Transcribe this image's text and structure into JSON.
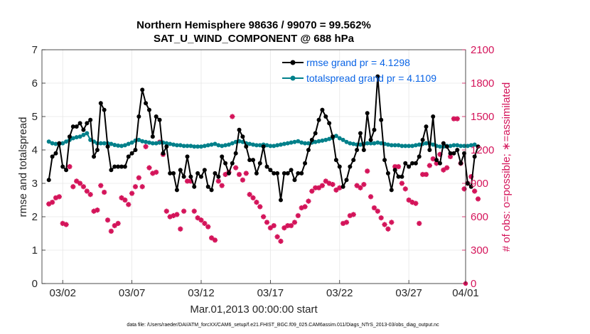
{
  "chart_data": {
    "type": "line",
    "title": "Northern Hemisphere 98636 / 99070 = 99.562%",
    "subtitle": "SAT_U_WIND_COMPONENT @ 688 hPa",
    "xlabel": "Mar.01,2013 00:00:00 start",
    "ylabel": "rmse and totalspread",
    "y2label": "# of obs: o=possible; ∗=assimilated",
    "footnote": "data file: /Users/raeder/DAI/ATM_forcXX/CAM6_setup/f.e21.FHIST_BGC.f09_025.CAM6assim.011/Diags_NTrS_2013-03/obs_diag_output.nc",
    "xlim": [
      0.5,
      31.1
    ],
    "ylim": [
      0,
      7
    ],
    "y2lim": [
      0,
      2100
    ],
    "x_ticks": [
      2,
      7,
      12,
      17,
      22,
      27,
      32
    ],
    "x_tick_labels": [
      "03/02",
      "03/07",
      "03/12",
      "03/17",
      "03/22",
      "03/27",
      "04/01"
    ],
    "y_ticks": [
      "0",
      "1",
      "2",
      "3",
      "4",
      "5",
      "6",
      "7"
    ],
    "y2_ticks": [
      "0",
      "300",
      "600",
      "900",
      "1200",
      "1500",
      "1800",
      "2100"
    ],
    "grid": true,
    "legend_position": "top-right",
    "colors": {
      "rmse": "#000000",
      "spread": "#00808a",
      "obs": "#d4145a",
      "legend_text": "#0a64e6"
    },
    "series": [
      {
        "name": "rmse grand pr = 4.1298",
        "color": "#000000",
        "values": [
          3.1,
          3.8,
          3.9,
          4.2,
          3.5,
          3.4,
          4.4,
          4.7,
          4.7,
          4.8,
          4.6,
          4.8,
          4.9,
          3.8,
          4.0,
          5.4,
          5.2,
          4.1,
          3.4,
          3.5,
          3.5,
          3.5,
          3.5,
          3.8,
          3.9,
          4.0,
          5.0,
          5.8,
          5.4,
          5.2,
          4.4,
          5.0,
          4.9,
          3.9,
          4.1,
          3.3,
          3.3,
          2.8,
          3.4,
          3.2,
          3.8,
          3.2,
          2.9,
          3.3,
          3.2,
          3.4,
          2.9,
          2.8,
          3.3,
          3.2,
          3.8,
          3.6,
          3.3,
          3.6,
          3.9,
          4.6,
          4.4,
          4.1,
          3.7,
          3.7,
          3.3,
          3.6,
          4.1,
          3.5,
          3.4,
          3.3,
          3.3,
          2.5,
          3.3,
          3.3,
          3.4,
          3.1,
          3.3,
          3.3,
          3.6,
          4.0,
          4.3,
          4.5,
          4.9,
          5.2,
          5.0,
          4.8,
          4.4,
          3.7,
          3.5,
          2.9,
          3.1,
          3.5,
          3.7,
          4.0,
          4.5,
          4.0,
          5.1,
          4.3,
          4.6,
          6.2,
          4.9,
          3.7,
          3.3,
          2.8,
          3.4,
          3.2,
          3.2,
          3.6,
          3.5,
          3.6,
          3.6,
          3.8,
          4.3,
          4.7,
          4.0,
          5.0,
          3.7,
          3.6,
          4.2,
          4.1,
          3.9,
          3.9,
          4.0,
          3.6,
          3.9,
          3.0,
          2.9,
          3.8,
          4.1
        ],
        "marker": "filled-circle"
      },
      {
        "name": "totalspread grand pr = 4.1109",
        "color": "#00808a",
        "values": [
          4.25,
          4.2,
          4.18,
          4.18,
          4.2,
          4.25,
          4.3,
          4.35,
          4.38,
          4.4,
          4.45,
          4.5,
          4.3,
          4.25,
          4.2,
          4.2,
          4.2,
          4.2,
          4.18,
          4.15,
          4.13,
          4.12,
          4.14,
          4.18,
          4.22,
          4.28,
          4.3,
          4.26,
          4.24,
          4.22,
          4.2,
          4.2,
          4.22,
          4.22,
          4.2,
          4.18,
          4.16,
          4.14,
          4.14,
          4.12,
          4.12,
          4.12,
          4.1,
          4.1,
          4.1,
          4.12,
          4.14,
          4.16,
          4.18,
          4.14,
          4.12,
          4.14,
          4.16,
          4.2,
          4.24,
          4.26,
          4.24,
          4.2,
          4.18,
          4.16,
          4.14,
          4.14,
          4.16,
          4.14,
          4.12,
          4.12,
          4.14,
          4.16,
          4.18,
          4.2,
          4.22,
          4.24,
          4.26,
          4.22,
          4.2,
          4.2,
          4.22,
          4.24,
          4.26,
          4.28,
          4.3,
          4.33,
          4.36,
          4.42,
          4.35,
          4.3,
          4.24,
          4.2,
          4.18,
          4.16,
          4.16,
          4.18,
          4.2,
          4.2,
          4.2,
          4.22,
          4.2,
          4.18,
          4.16,
          4.14,
          4.14,
          4.14,
          4.12,
          4.12,
          4.12,
          4.12,
          4.14,
          4.16,
          4.18,
          4.2,
          4.2,
          4.16,
          4.12,
          4.1,
          4.1,
          4.12,
          4.12,
          4.14,
          4.14,
          4.12,
          4.12,
          4.12,
          4.14,
          4.16
        ],
        "marker": "filled-circle"
      },
      {
        "name": "obs assimilated",
        "color": "#d4145a",
        "axis": "right",
        "values": [
          715,
          730,
          770,
          780,
          540,
          530,
          1050,
          870,
          920,
          900,
          870,
          830,
          800,
          650,
          660,
          880,
          820,
          570,
          470,
          520,
          540,
          770,
          750,
          710,
          810,
          870,
          950,
          870,
          1230,
          1040,
          990,
          1000,
          1270,
          1160,
          650,
          600,
          610,
          620,
          490,
          650,
          920,
          920,
          650,
          590,
          570,
          540,
          510,
          410,
          390,
          920,
          880,
          980,
          1000,
          1500,
          1040,
          980,
          930,
          990,
          800,
          770,
          730,
          690,
          600,
          550,
          500,
          520,
          420,
          380,
          500,
          520,
          520,
          550,
          610,
          680,
          690,
          740,
          830,
          860,
          860,
          880,
          920,
          900,
          890,
          840,
          860,
          540,
          550,
          610,
          620,
          880,
          860,
          890,
          1010,
          780,
          680,
          650,
          590,
          530,
          490,
          550,
          1050,
          1050,
          900,
          850,
          750,
          730,
          720,
          540,
          980,
          980,
          1060,
          1120,
          1080,
          1160,
          1020,
          1040,
          1140,
          1480,
          1480,
          1080,
          850,
          900,
          960,
          830,
          760
        ],
        "marker": "asterisk"
      }
    ]
  }
}
